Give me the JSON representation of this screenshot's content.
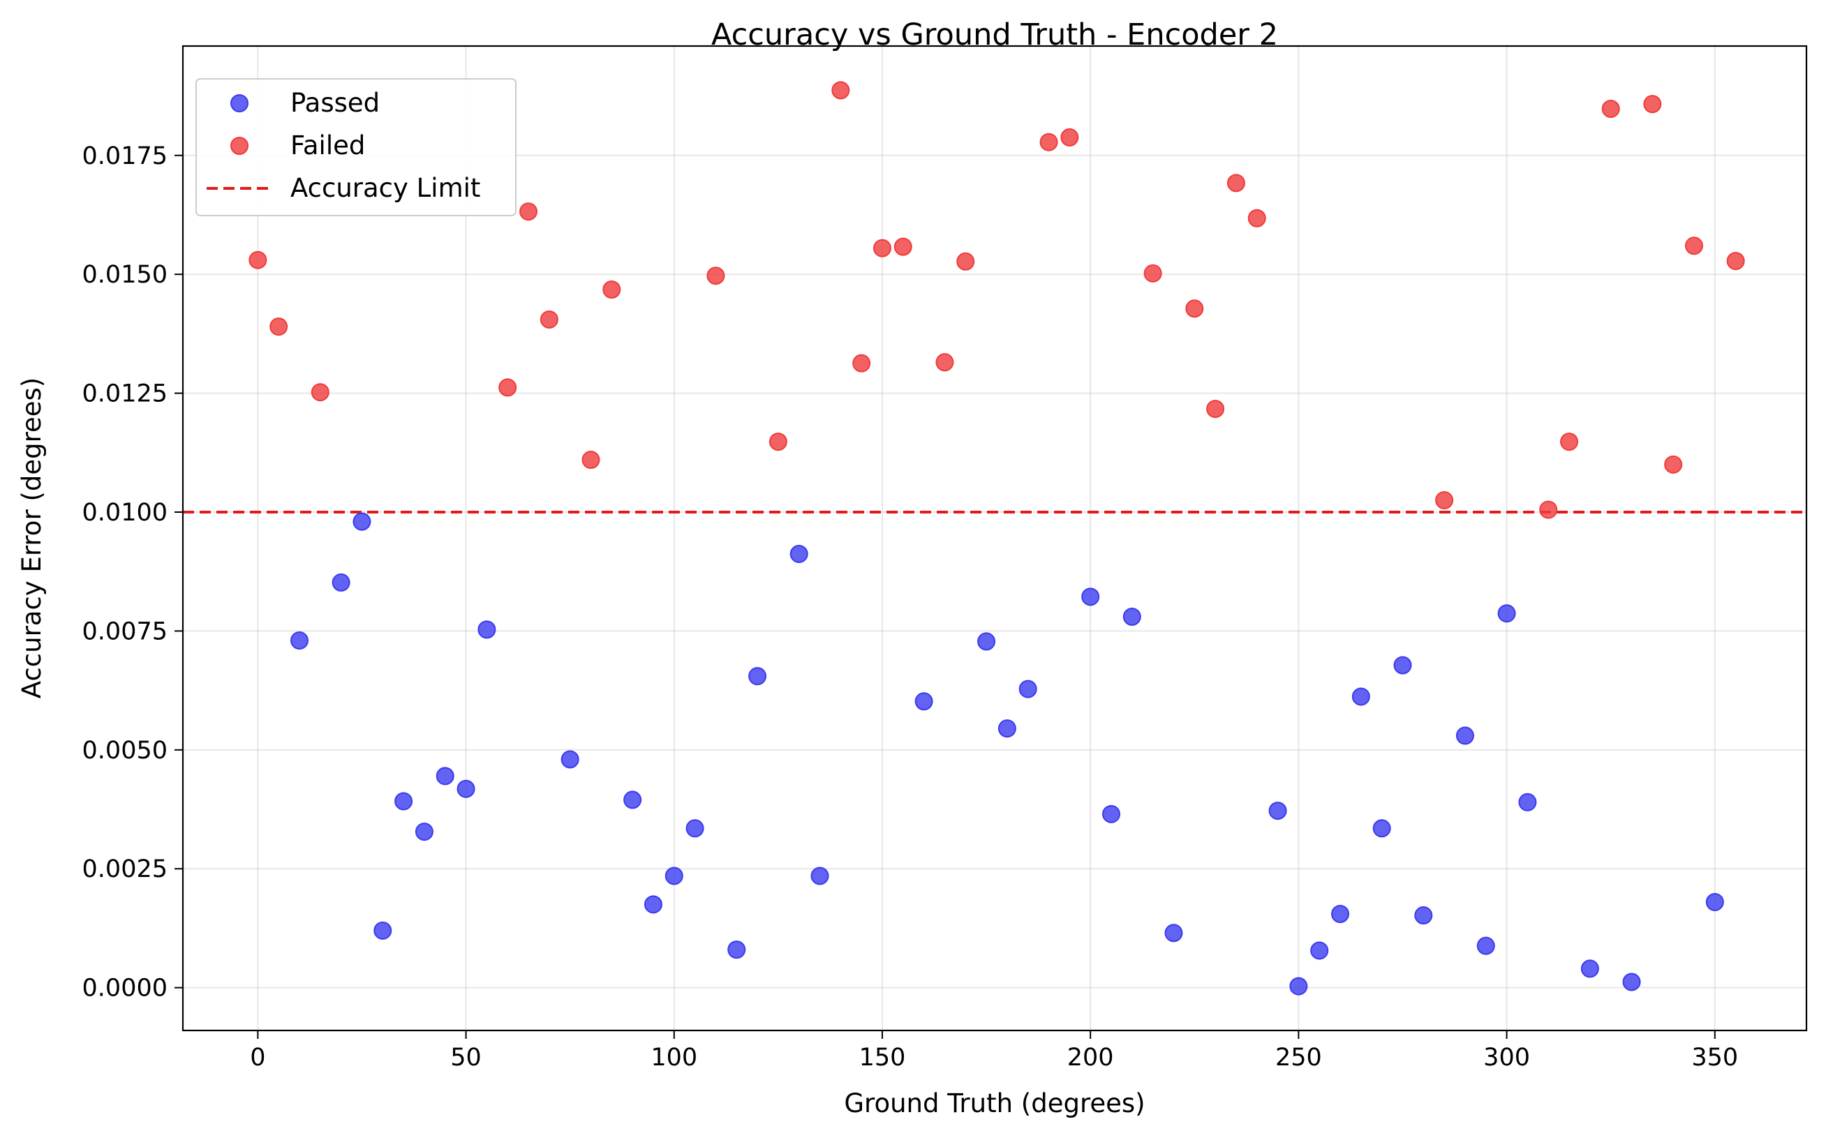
{
  "chart_data": {
    "type": "scatter",
    "title": "Accuracy vs Ground Truth - Encoder 2",
    "xlabel": "Ground Truth (degrees)",
    "ylabel": "Accuracy Error (degrees)",
    "xlim": [
      -18,
      372
    ],
    "ylim": [
      -0.0009,
      0.0198
    ],
    "xticks": [
      0,
      50,
      100,
      150,
      200,
      250,
      300,
      350
    ],
    "xtick_labels": [
      "0",
      "50",
      "100",
      "150",
      "200",
      "250",
      "300",
      "350"
    ],
    "yticks": [
      0.0,
      0.0025,
      0.005,
      0.0075,
      0.01,
      0.0125,
      0.015,
      0.0175
    ],
    "ytick_labels": [
      "0.0000",
      "0.0025",
      "0.0050",
      "0.0075",
      "0.0100",
      "0.0125",
      "0.0150",
      "0.0175"
    ],
    "grid": true,
    "legend_position": "top-left",
    "limit": {
      "name": "Accuracy Limit",
      "y": 0.01,
      "color": "#e31a1c",
      "style": "dashed"
    },
    "series": [
      {
        "name": "Passed",
        "color": "#3b3bf0",
        "points": [
          [
            10,
            0.0073
          ],
          [
            20,
            0.00852
          ],
          [
            25,
            0.0098
          ],
          [
            30,
            0.0012
          ],
          [
            35,
            0.00392
          ],
          [
            40,
            0.00328
          ],
          [
            45,
            0.00445
          ],
          [
            50,
            0.00418
          ],
          [
            55,
            0.00753
          ],
          [
            75,
            0.0048
          ],
          [
            90,
            0.00395
          ],
          [
            95,
            0.00175
          ],
          [
            100,
            0.00235
          ],
          [
            105,
            0.00335
          ],
          [
            115,
            0.0008
          ],
          [
            120,
            0.00655
          ],
          [
            130,
            0.00912
          ],
          [
            135,
            0.00235
          ],
          [
            160,
            0.00602
          ],
          [
            175,
            0.00728
          ],
          [
            180,
            0.00545
          ],
          [
            185,
            0.00628
          ],
          [
            200,
            0.00822
          ],
          [
            205,
            0.00365
          ],
          [
            210,
            0.0078
          ],
          [
            220,
            0.00115
          ],
          [
            245,
            0.00372
          ],
          [
            250,
            3e-05
          ],
          [
            255,
            0.00078
          ],
          [
            260,
            0.00155
          ],
          [
            265,
            0.00612
          ],
          [
            270,
            0.00335
          ],
          [
            275,
            0.00678
          ],
          [
            280,
            0.00152
          ],
          [
            290,
            0.0053
          ],
          [
            295,
            0.00088
          ],
          [
            300,
            0.00787
          ],
          [
            305,
            0.0039
          ],
          [
            320,
            0.0004
          ],
          [
            330,
            0.00012
          ],
          [
            350,
            0.0018
          ]
        ]
      },
      {
        "name": "Failed",
        "color": "#f03b3b",
        "points": [
          [
            0,
            0.0153
          ],
          [
            5,
            0.0139
          ],
          [
            15,
            0.01252
          ],
          [
            60,
            0.01262
          ],
          [
            65,
            0.01632
          ],
          [
            70,
            0.01405
          ],
          [
            80,
            0.0111
          ],
          [
            85,
            0.01468
          ],
          [
            110,
            0.01497
          ],
          [
            125,
            0.01148
          ],
          [
            140,
            0.01887
          ],
          [
            145,
            0.01313
          ],
          [
            150,
            0.01555
          ],
          [
            155,
            0.01558
          ],
          [
            165,
            0.01315
          ],
          [
            170,
            0.01527
          ],
          [
            190,
            0.01778
          ],
          [
            195,
            0.01788
          ],
          [
            215,
            0.01502
          ],
          [
            225,
            0.01428
          ],
          [
            230,
            0.01217
          ],
          [
            235,
            0.01692
          ],
          [
            240,
            0.01618
          ],
          [
            285,
            0.01025
          ],
          [
            310,
            0.01005
          ],
          [
            315,
            0.01148
          ],
          [
            325,
            0.01848
          ],
          [
            335,
            0.01858
          ],
          [
            340,
            0.011
          ],
          [
            345,
            0.0156
          ],
          [
            355,
            0.01528
          ]
        ]
      }
    ]
  }
}
